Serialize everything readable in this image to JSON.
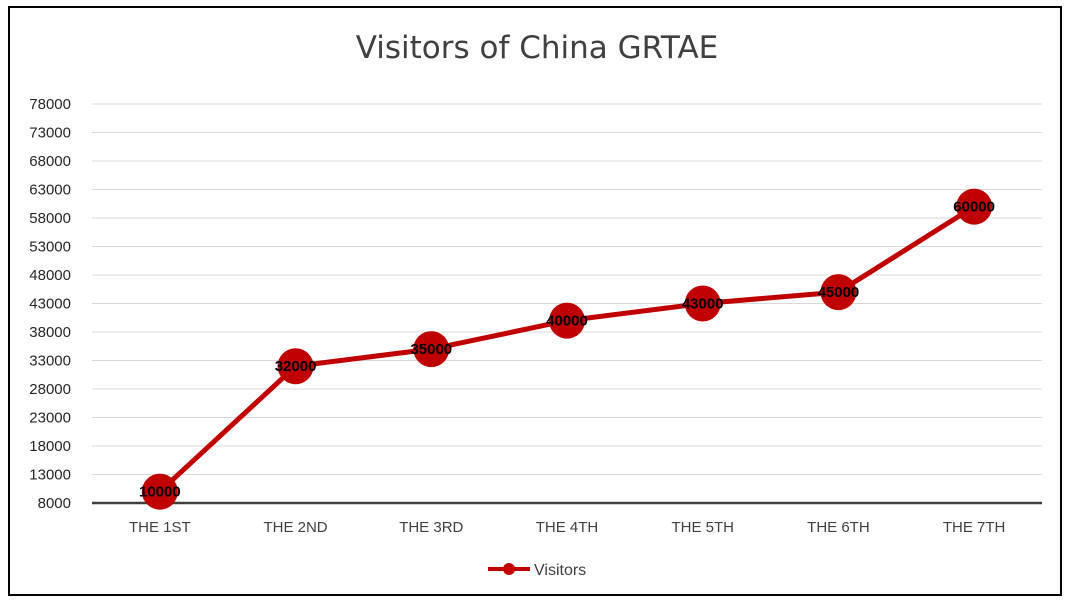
{
  "chart_data": {
    "type": "line",
    "title": "Visitors of China GRTAE",
    "categories": [
      "THE 1ST",
      "THE 2ND",
      "THE 3RD",
      "THE 4TH",
      "THE 5TH",
      "THE 6TH",
      "THE 7TH"
    ],
    "series": [
      {
        "name": "Visitors",
        "values": [
          10000,
          32000,
          35000,
          40000,
          43000,
          45000,
          60000
        ],
        "color": "#C00000"
      }
    ],
    "yticks": [
      "8000",
      "13000",
      "18000",
      "23000",
      "28000",
      "33000",
      "38000",
      "43000",
      "48000",
      "53000",
      "58000",
      "63000",
      "68000",
      "73000",
      "78000"
    ],
    "ylim": [
      8000,
      78000
    ],
    "xlabel": "",
    "ylabel": "",
    "grid": true,
    "legend": "bottom",
    "data_labels": true
  }
}
